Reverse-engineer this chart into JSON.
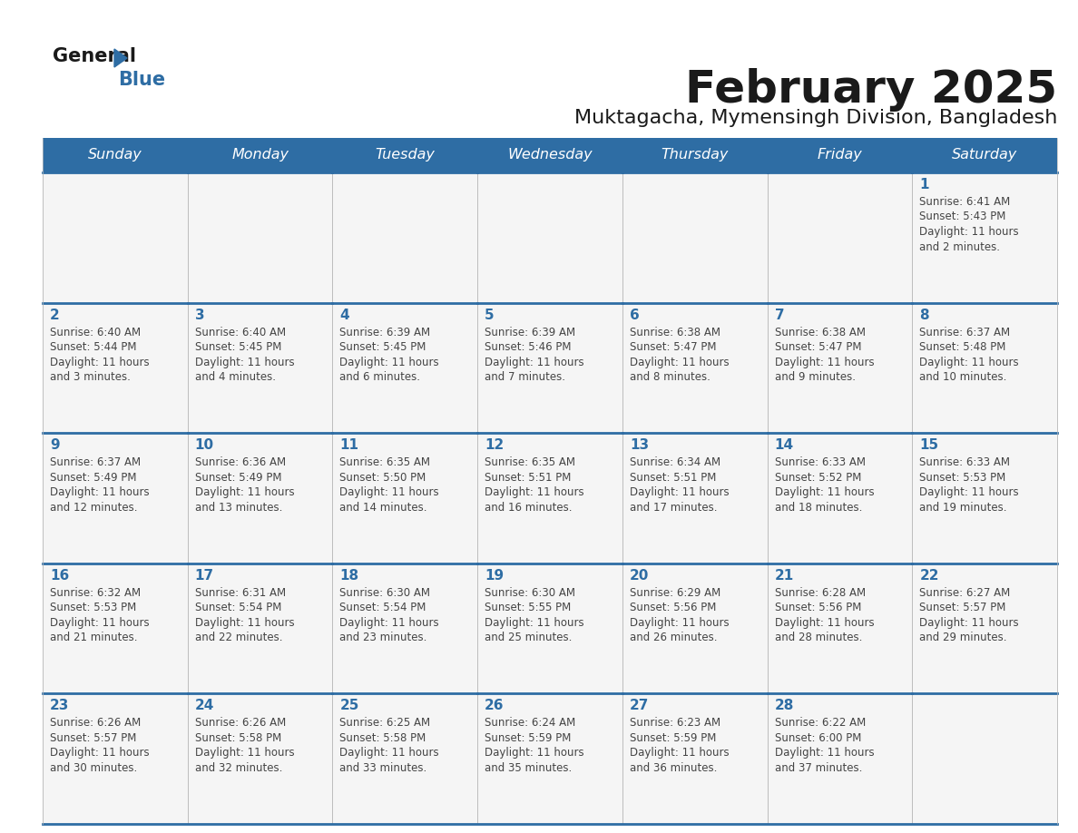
{
  "title": "February 2025",
  "subtitle": "Muktagacha, Mymensingh Division, Bangladesh",
  "header_bg": "#2E6DA4",
  "header_text": "#FFFFFF",
  "cell_bg": "#F5F5F5",
  "day_number_color": "#2E6DA4",
  "info_text_color": "#444444",
  "border_color": "#2E6DA4",
  "days_of_week": [
    "Sunday",
    "Monday",
    "Tuesday",
    "Wednesday",
    "Thursday",
    "Friday",
    "Saturday"
  ],
  "calendar": [
    [
      null,
      null,
      null,
      null,
      null,
      null,
      1
    ],
    [
      2,
      3,
      4,
      5,
      6,
      7,
      8
    ],
    [
      9,
      10,
      11,
      12,
      13,
      14,
      15
    ],
    [
      16,
      17,
      18,
      19,
      20,
      21,
      22
    ],
    [
      23,
      24,
      25,
      26,
      27,
      28,
      null
    ]
  ],
  "sunrise": {
    "1": "6:41 AM",
    "2": "6:40 AM",
    "3": "6:40 AM",
    "4": "6:39 AM",
    "5": "6:39 AM",
    "6": "6:38 AM",
    "7": "6:38 AM",
    "8": "6:37 AM",
    "9": "6:37 AM",
    "10": "6:36 AM",
    "11": "6:35 AM",
    "12": "6:35 AM",
    "13": "6:34 AM",
    "14": "6:33 AM",
    "15": "6:33 AM",
    "16": "6:32 AM",
    "17": "6:31 AM",
    "18": "6:30 AM",
    "19": "6:30 AM",
    "20": "6:29 AM",
    "21": "6:28 AM",
    "22": "6:27 AM",
    "23": "6:26 AM",
    "24": "6:26 AM",
    "25": "6:25 AM",
    "26": "6:24 AM",
    "27": "6:23 AM",
    "28": "6:22 AM"
  },
  "sunset": {
    "1": "5:43 PM",
    "2": "5:44 PM",
    "3": "5:45 PM",
    "4": "5:45 PM",
    "5": "5:46 PM",
    "6": "5:47 PM",
    "7": "5:47 PM",
    "8": "5:48 PM",
    "9": "5:49 PM",
    "10": "5:49 PM",
    "11": "5:50 PM",
    "12": "5:51 PM",
    "13": "5:51 PM",
    "14": "5:52 PM",
    "15": "5:53 PM",
    "16": "5:53 PM",
    "17": "5:54 PM",
    "18": "5:54 PM",
    "19": "5:55 PM",
    "20": "5:56 PM",
    "21": "5:56 PM",
    "22": "5:57 PM",
    "23": "5:57 PM",
    "24": "5:58 PM",
    "25": "5:58 PM",
    "26": "5:59 PM",
    "27": "5:59 PM",
    "28": "6:00 PM"
  },
  "daylight": {
    "1": "11 hours and 2 minutes.",
    "2": "11 hours and 3 minutes.",
    "3": "11 hours and 4 minutes.",
    "4": "11 hours and 6 minutes.",
    "5": "11 hours and 7 minutes.",
    "6": "11 hours and 8 minutes.",
    "7": "11 hours and 9 minutes.",
    "8": "11 hours and 10 minutes.",
    "9": "11 hours and 12 minutes.",
    "10": "11 hours and 13 minutes.",
    "11": "11 hours and 14 minutes.",
    "12": "11 hours and 16 minutes.",
    "13": "11 hours and 17 minutes.",
    "14": "11 hours and 18 minutes.",
    "15": "11 hours and 19 minutes.",
    "16": "11 hours and 21 minutes.",
    "17": "11 hours and 22 minutes.",
    "18": "11 hours and 23 minutes.",
    "19": "11 hours and 25 minutes.",
    "20": "11 hours and 26 minutes.",
    "21": "11 hours and 28 minutes.",
    "22": "11 hours and 29 minutes.",
    "23": "11 hours and 30 minutes.",
    "24": "11 hours and 32 minutes.",
    "25": "11 hours and 33 minutes.",
    "26": "11 hours and 35 minutes.",
    "27": "11 hours and 36 minutes.",
    "28": "11 hours and 37 minutes."
  }
}
